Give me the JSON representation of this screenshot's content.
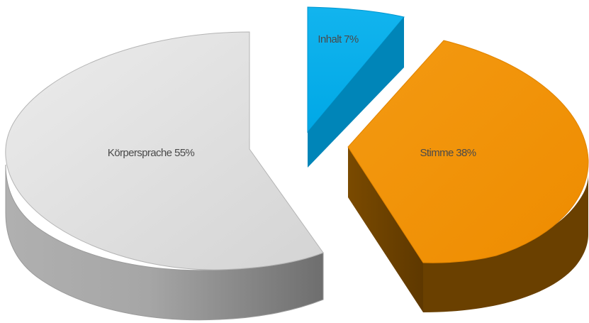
{
  "chart_data": {
    "type": "pie",
    "style": "3d-exploded",
    "slices": [
      {
        "label": "Körpersprache 55%",
        "category": "Körpersprache",
        "value": 55,
        "color": "#d9d9d9"
      },
      {
        "label": "Stimme 38%",
        "category": "Stimme",
        "value": 38,
        "color": "#f29100"
      },
      {
        "label": "Inhalt 7%",
        "category": "Inhalt",
        "value": 7,
        "color": "#00b0f0"
      }
    ]
  }
}
